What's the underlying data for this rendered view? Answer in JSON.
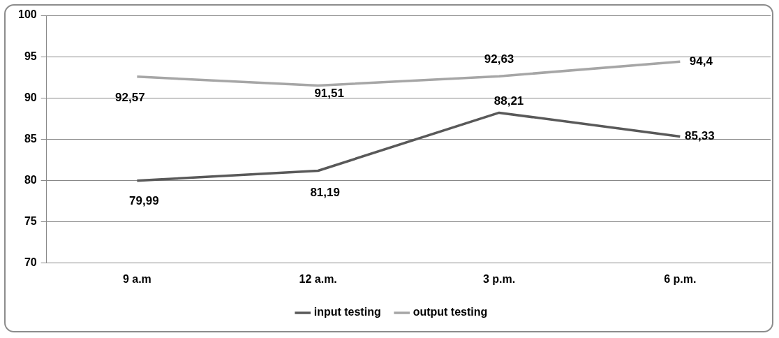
{
  "chart_data": {
    "type": "line",
    "categories": [
      "9 a.m",
      "12 a.m.",
      "3 p.m.",
      "6 p.m."
    ],
    "series": [
      {
        "name": "input testing",
        "color": "#595959",
        "values": [
          79.99,
          81.19,
          88.21,
          85.33
        ],
        "value_labels": [
          "79,99",
          "81,19",
          "88,21",
          "85,33"
        ]
      },
      {
        "name": "output testing",
        "color": "#a6a6a6",
        "values": [
          92.57,
          91.51,
          92.63,
          94.4
        ],
        "value_labels": [
          "92,57",
          "91,51",
          "92,63",
          "94,4"
        ]
      }
    ],
    "ylim": [
      70,
      100
    ],
    "yticks": [
      70,
      75,
      80,
      85,
      90,
      95,
      100
    ],
    "grid": "y",
    "legend": "bottom",
    "marker": "none",
    "line_style": "solid"
  }
}
